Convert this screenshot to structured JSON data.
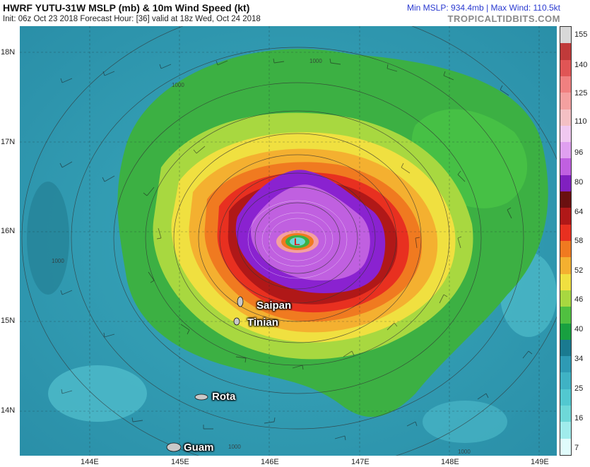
{
  "header": {
    "title": "HWRF YUTU-31W MSLP (mb) & 10m Wind Speed (kt)",
    "subtitle": "Init: 06z Oct 23 2018   Forecast Hour: [36]   valid at 18z Wed, Oct 24 2018",
    "min_max": "Min MSLP: 934.4mb | Max Wind: 110.5kt",
    "brand": "TROPICALTIDBITS.COM"
  },
  "axes": {
    "lat_labels": [
      "18N",
      "17N",
      "16N",
      "15N",
      "14N"
    ],
    "lon_labels": [
      "144E",
      "145E",
      "146E",
      "147E",
      "148E",
      "149E"
    ]
  },
  "places": {
    "saipan": "Saipan",
    "tinian": "Tinian",
    "rota": "Rota",
    "guam": "Guam"
  },
  "storm": {
    "center_marker": "L"
  },
  "isobar_labels": [
    "1000",
    "1000",
    "1000",
    "1000",
    "1000"
  ],
  "colorbar": {
    "ticks": [
      "155",
      "140",
      "125",
      "110",
      "96",
      "80",
      "64",
      "58",
      "52",
      "46",
      "40",
      "34",
      "25",
      "16",
      "7"
    ],
    "colors": [
      "#d8d8d8",
      "#c03a3a",
      "#e05555",
      "#f08080",
      "#f4a0a0",
      "#f4c0c4",
      "#f0c8f0",
      "#e0a0f0",
      "#c060e0",
      "#8020c0",
      "#6a1010",
      "#b01818",
      "#e83020",
      "#f07a20",
      "#f4b030",
      "#f0e040",
      "#a8d840",
      "#50c040",
      "#18a040",
      "#1a7a90",
      "#2e9ab4",
      "#3fb2c4",
      "#52c8d0",
      "#6ed8d8",
      "#a0ecec",
      "#e0fcfc"
    ]
  },
  "colors": {
    "ocean_deep": "#2a8fa8",
    "ocean_mid": "#3aa9bd",
    "ocean_light": "#7fd6d8",
    "green": "#3cb043",
    "yellow": "#e8e040",
    "orange": "#f08a20",
    "red": "#d8201e",
    "darkred": "#8a0d0d",
    "purple": "#8a22d0",
    "lilac": "#d7a8f0"
  }
}
